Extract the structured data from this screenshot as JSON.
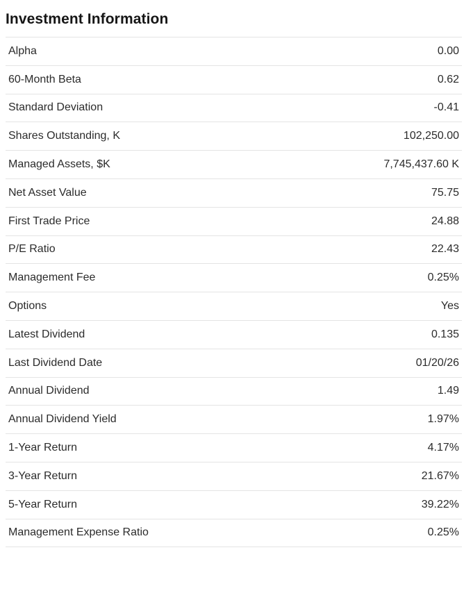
{
  "section": {
    "title": "Investment Information"
  },
  "table": {
    "rows": [
      {
        "label": "Alpha",
        "value": "0.00"
      },
      {
        "label": "60-Month Beta",
        "value": "0.62"
      },
      {
        "label": "Standard Deviation",
        "value": "-0.41"
      },
      {
        "label": "Shares Outstanding, K",
        "value": "102,250.00"
      },
      {
        "label": "Managed Assets, $K",
        "value": "7,745,437.60 K"
      },
      {
        "label": "Net Asset Value",
        "value": "75.75"
      },
      {
        "label": "First Trade Price",
        "value": "24.88"
      },
      {
        "label": "P/E Ratio",
        "value": "22.43"
      },
      {
        "label": "Management Fee",
        "value": "0.25%"
      },
      {
        "label": "Options",
        "value": "Yes"
      },
      {
        "label": "Latest Dividend",
        "value": "0.135"
      },
      {
        "label": "Last Dividend Date",
        "value": "01/20/26"
      },
      {
        "label": "Annual Dividend",
        "value": "1.49"
      },
      {
        "label": "Annual Dividend Yield",
        "value": "1.97%"
      },
      {
        "label": "1-Year Return",
        "value": "4.17%"
      },
      {
        "label": "3-Year Return",
        "value": "21.67%"
      },
      {
        "label": "5-Year Return",
        "value": "39.22%"
      },
      {
        "label": "Management Expense Ratio",
        "value": "0.25%"
      }
    ]
  },
  "colors": {
    "background": "#ffffff",
    "title_text": "#161616",
    "row_text": "#2b2b2b",
    "divider": "#e4e4e4"
  }
}
